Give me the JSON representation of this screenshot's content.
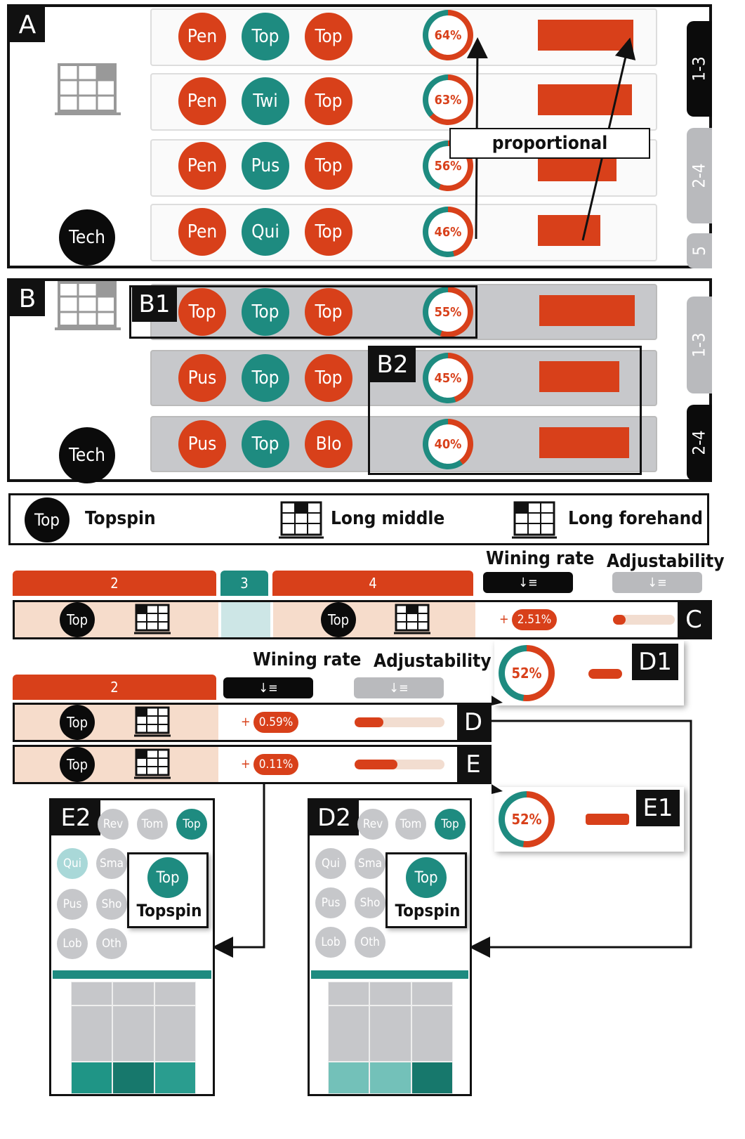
{
  "panel_a": {
    "tag": "A",
    "tech_label": "Tech",
    "rows": [
      {
        "c1": "Pen",
        "c2": "Top",
        "c3": "Top",
        "c2teal": true,
        "pct": "64%",
        "p": 0.64,
        "bar": 0.73
      },
      {
        "c1": "Pen",
        "c2": "Twi",
        "c3": "Top",
        "c2teal": true,
        "pct": "63%",
        "p": 0.63,
        "bar": 0.72
      },
      {
        "c1": "Pen",
        "c2": "Pus",
        "c3": "Top",
        "c2teal": true,
        "pct": "56%",
        "p": 0.56,
        "bar": 0.6
      },
      {
        "c1": "Pen",
        "c2": "Qui",
        "c3": "Top",
        "c2teal": true,
        "pct": "46%",
        "p": 0.46,
        "bar": 0.48
      }
    ],
    "annotation": "proportional",
    "tabs": [
      "1-3",
      "2-4",
      "5"
    ]
  },
  "panel_b": {
    "tag": "B",
    "tech_label": "Tech",
    "b1": "B1",
    "b2": "B2",
    "rows": [
      {
        "c1": "Top",
        "c2": "Top",
        "c3": "Top",
        "pct": "55%",
        "p": 0.55
      },
      {
        "c1": "Pus",
        "c2": "Top",
        "c3": "Top",
        "pct": "45%",
        "p": 0.45
      },
      {
        "c1": "Pus",
        "c2": "Top",
        "c3": "Blo",
        "pct": "40%",
        "p": 0.4
      }
    ],
    "tabs": [
      "1-3",
      "2-4"
    ]
  },
  "legend": {
    "icon_text": "Top",
    "topspin": "Topspin",
    "long_middle": "Long middle",
    "long_forehand": "Long forehand"
  },
  "section_c": {
    "headers": [
      "2",
      "3",
      "4"
    ],
    "winning_rate": "Wining rate",
    "adjustability": "Adjustability",
    "sort_glyph": "↓≡",
    "top1": "Top",
    "top2": "Top",
    "plus": "+",
    "rate": "2.51%",
    "adjust": 0.2,
    "tag": "C"
  },
  "section_de": {
    "header": "2",
    "winning_rate": "Wining rate",
    "adjustability": "Adjustability",
    "sort_glyph": "↓≡",
    "rows": [
      {
        "top": "Top",
        "plus": "+",
        "rate": "0.59%",
        "adjust": 0.32,
        "tag": "D"
      },
      {
        "top": "Top",
        "plus": "+",
        "rate": "0.11%",
        "adjust": 0.48,
        "tag": "E"
      }
    ]
  },
  "d1": {
    "tag": "D1",
    "pct": "52%",
    "p": 0.52
  },
  "e1": {
    "tag": "E1",
    "pct": "52%",
    "p": 0.52
  },
  "e2": {
    "tag": "E2",
    "row1": [
      "Rev",
      "Tom",
      "Top"
    ],
    "row2": [
      "Qui",
      "Sma"
    ],
    "row3": [
      "Pus",
      "Sho"
    ],
    "row4": [
      "Lob",
      "Oth"
    ],
    "tip_icon": "Top",
    "tip_label": "Topspin"
  },
  "d2": {
    "tag": "D2",
    "row1": [
      "Rev",
      "Tom",
      "Top"
    ],
    "row2": [
      "Qui",
      "Sma"
    ],
    "row3": [
      "Pus",
      "Sho"
    ],
    "row4": [
      "Lob",
      "Oth"
    ],
    "tip_icon": "Top",
    "tip_label": "Topspin"
  },
  "colors": {
    "red": "#d8401a",
    "teal": "#1e8b80",
    "black": "#0b0b0b",
    "gray": "#c7c8cb"
  }
}
